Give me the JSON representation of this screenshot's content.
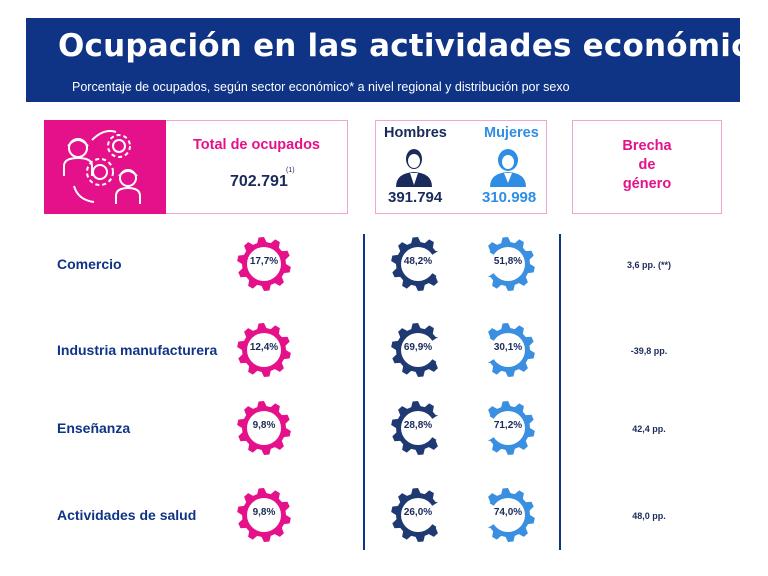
{
  "header": {
    "title": "Ocupación en las actividades económicas",
    "subtitle": "Porcentaje de ocupados, según sector económico* a nivel regional y distribución por sexo"
  },
  "summary": {
    "total_label": "Total de ocupados",
    "total_value": "702.791",
    "total_note": "(1)",
    "men_label": "Hombres",
    "men_value": "391.794",
    "women_label": "Mujeres",
    "women_value": "310.998",
    "gap_label_1": "Brecha",
    "gap_label_2": "de",
    "gap_label_3": "género"
  },
  "rows": [
    {
      "category": "Comercio",
      "share": "17,7%",
      "men": "48,2%",
      "women": "51,8%",
      "gap": "3,6 pp. (**)"
    },
    {
      "category": "Industria manufacturera",
      "share": "12,4%",
      "men": "69,9%",
      "women": "30,1%",
      "gap": "-39,8 pp."
    },
    {
      "category": "Enseñanza",
      "share": "9,8%",
      "men": "28,8%",
      "women": "71,2%",
      "gap": "42,4 pp."
    },
    {
      "category": "Actividades de salud",
      "share": "9,8%",
      "men": "26,0%",
      "women": "74,0%",
      "gap": "48,0 pp."
    }
  ],
  "colors": {
    "navy": "#0f3385",
    "magenta": "#e5118a",
    "men_gear": "#1f3a73",
    "women_gear": "#3b8fe0",
    "light_blue": "#2f8de4"
  },
  "icons": {
    "sector_icon": "workers-gears-icon",
    "men_icon": "man-avatar-icon",
    "women_icon": "woman-avatar-icon",
    "gear_icon": "gear-icon"
  }
}
